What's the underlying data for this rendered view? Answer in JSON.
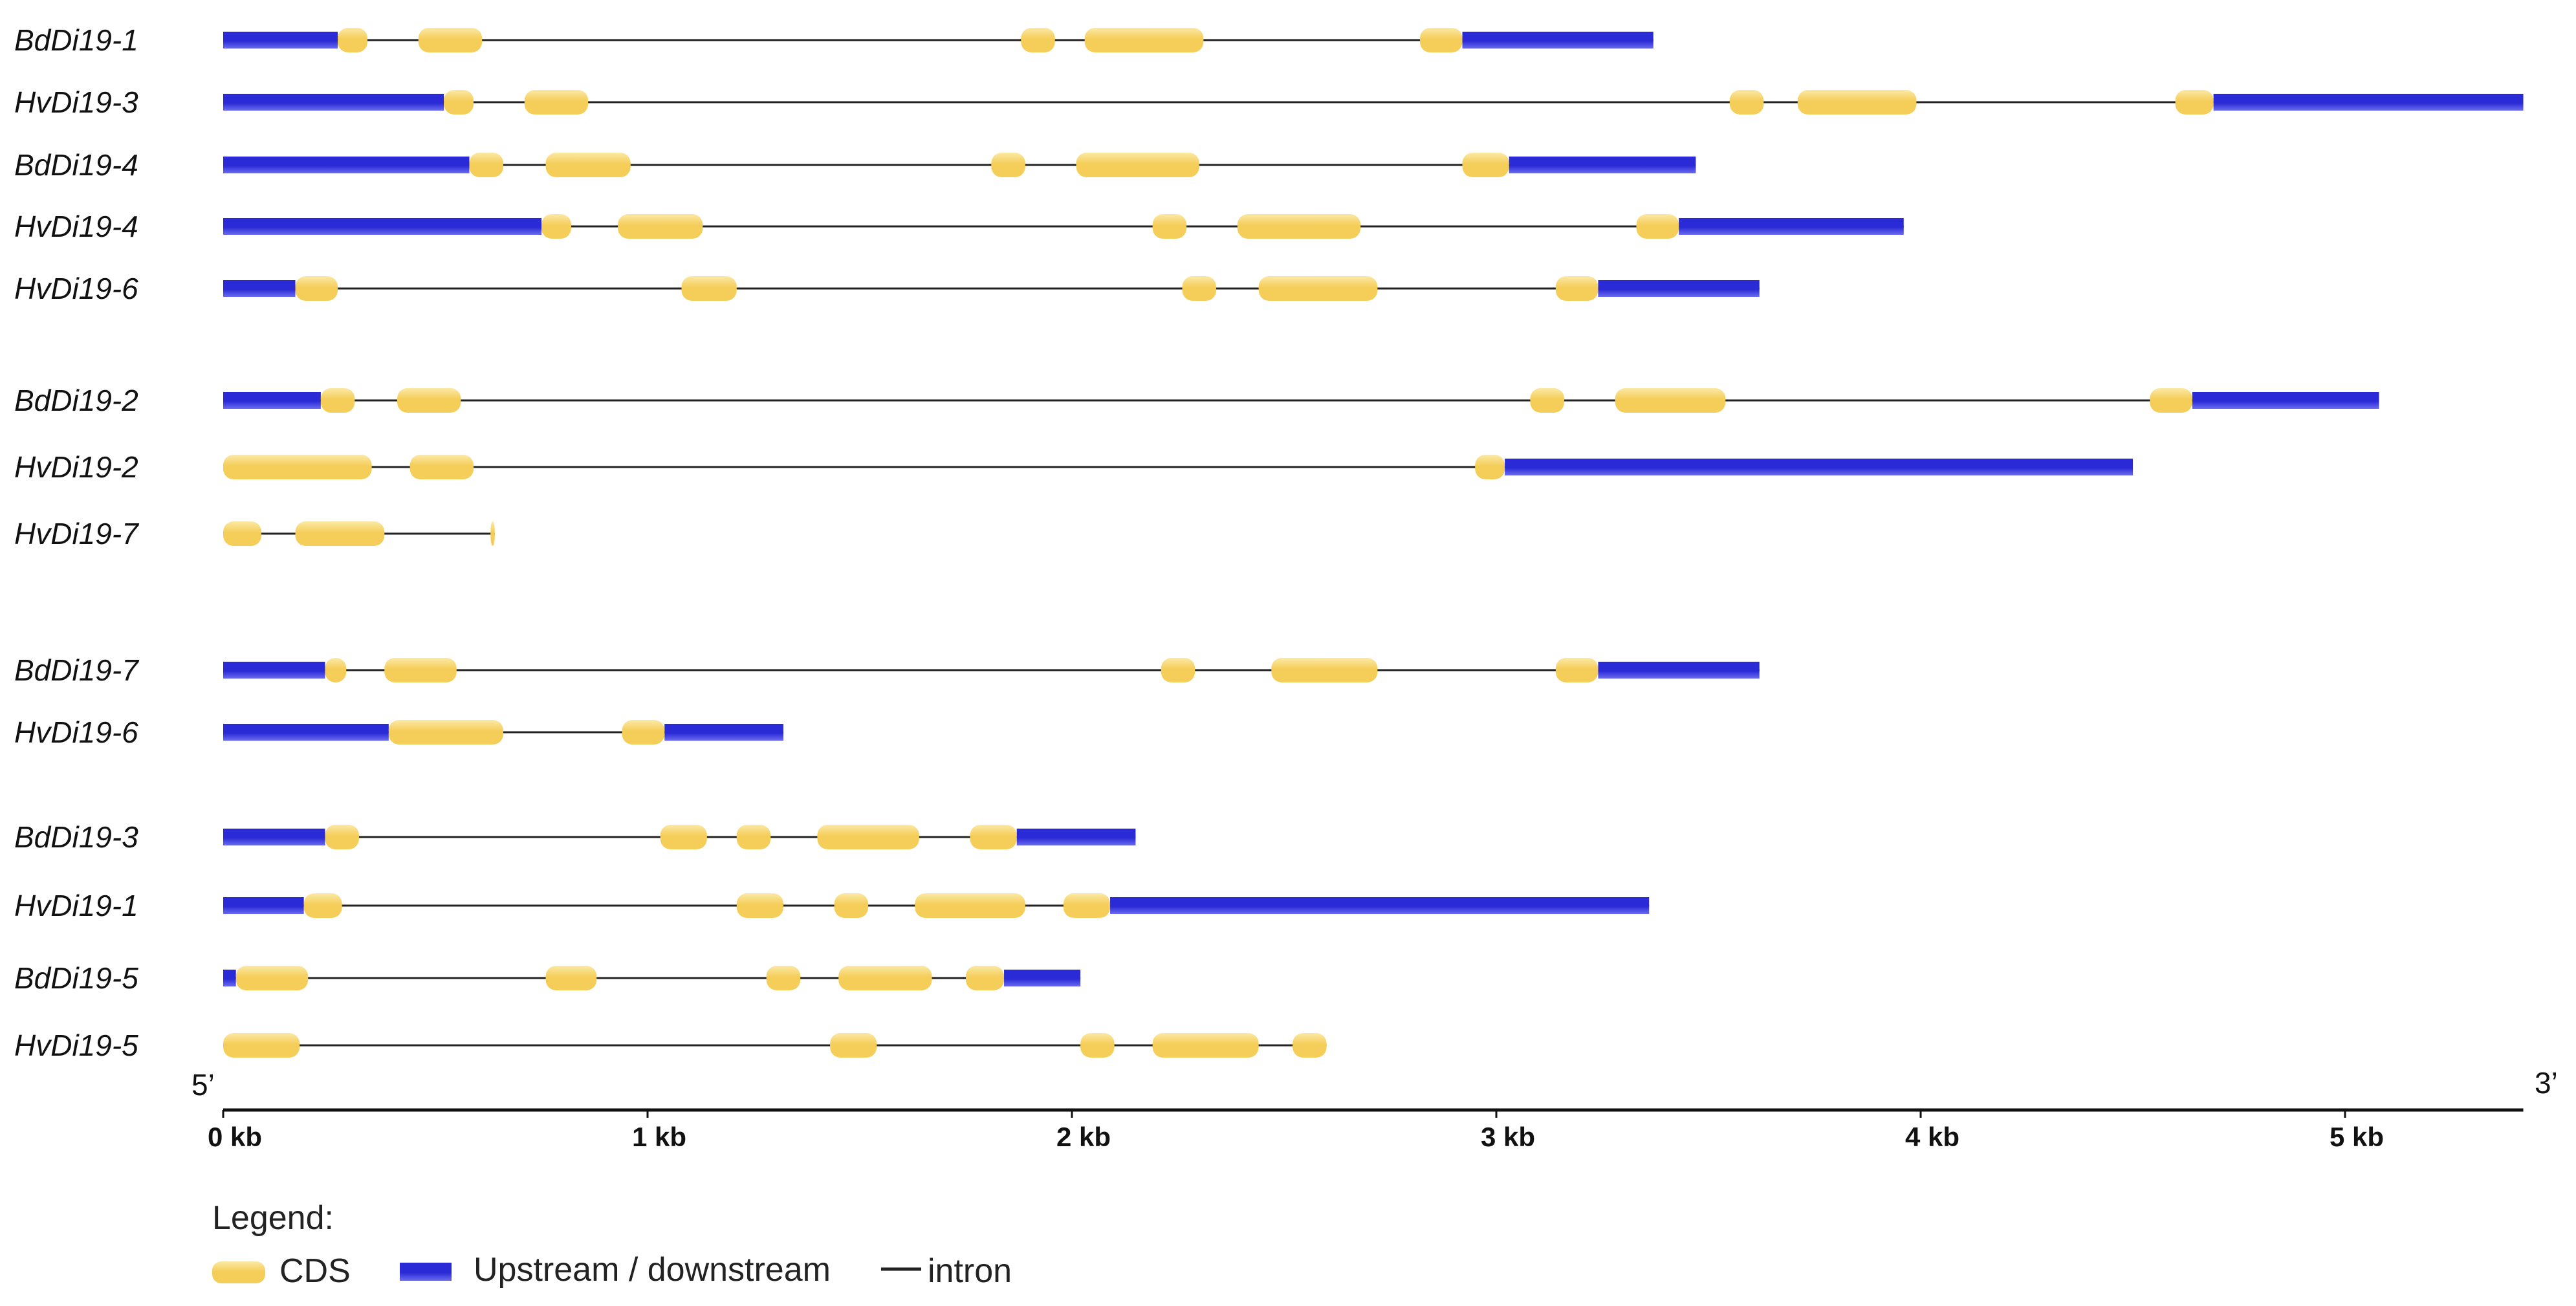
{
  "chart_data": {
    "type": "gene-structure",
    "x_unit": "kb",
    "xlim": [
      0,
      5.42
    ],
    "axis": {
      "start_label": "5’",
      "end_label": "3’",
      "ticks": [
        {
          "value": 0,
          "label": "0 kb"
        },
        {
          "value": 1,
          "label": "1 kb"
        },
        {
          "value": 2,
          "label": "2 kb"
        },
        {
          "value": 3,
          "label": "3 kb"
        },
        {
          "value": 4,
          "label": "4 kb"
        },
        {
          "value": 5,
          "label": "5 kb"
        }
      ]
    },
    "legend": {
      "title": "Legend:",
      "cds_label": "CDS",
      "utr_label": "Upstream / downstream",
      "intron_label": "intron"
    },
    "colors": {
      "cds": "#F5CE5A",
      "cds_highlight": "#FBE9A6",
      "utr": "#2A2AD6",
      "utr_highlight": "#6B6BF0",
      "intron": "#222222",
      "axis": "#111111"
    },
    "genes": [
      {
        "name": "BdDi19-1",
        "group": 1,
        "length": 3.37,
        "utr": [
          [
            0,
            0.27
          ],
          [
            2.92,
            3.37
          ]
        ],
        "cds": [
          [
            0.27,
            0.34
          ],
          [
            0.46,
            0.61
          ],
          [
            1.88,
            1.96
          ],
          [
            2.03,
            2.31
          ],
          [
            2.82,
            2.92
          ]
        ]
      },
      {
        "name": "HvDi19-3",
        "group": 1,
        "length": 5.42,
        "utr": [
          [
            0,
            0.52
          ],
          [
            4.69,
            5.42
          ]
        ],
        "cds": [
          [
            0.52,
            0.59
          ],
          [
            0.71,
            0.86
          ],
          [
            3.55,
            3.63
          ],
          [
            3.71,
            3.99
          ],
          [
            4.6,
            4.69
          ]
        ]
      },
      {
        "name": "BdDi19-4",
        "group": 1,
        "length": 3.47,
        "utr": [
          [
            0,
            0.58
          ],
          [
            3.03,
            3.47
          ]
        ],
        "cds": [
          [
            0.58,
            0.66
          ],
          [
            0.76,
            0.96
          ],
          [
            1.81,
            1.89
          ],
          [
            2.01,
            2.3
          ],
          [
            2.92,
            3.03
          ]
        ]
      },
      {
        "name": "HvDi19-4",
        "group": 1,
        "length": 3.96,
        "utr": [
          [
            0,
            0.75
          ],
          [
            3.43,
            3.96
          ]
        ],
        "cds": [
          [
            0.75,
            0.82
          ],
          [
            0.93,
            1.13
          ],
          [
            2.19,
            2.27
          ],
          [
            2.39,
            2.68
          ],
          [
            3.33,
            3.43
          ]
        ]
      },
      {
        "name": "HvDi19-6",
        "group": 1,
        "length": 3.62,
        "utr": [
          [
            0,
            0.17
          ],
          [
            3.24,
            3.62
          ]
        ],
        "cds": [
          [
            0.17,
            0.27
          ],
          [
            1.08,
            1.21
          ],
          [
            2.26,
            2.34
          ],
          [
            2.44,
            2.72
          ],
          [
            3.14,
            3.24
          ]
        ]
      },
      {
        "name": "BdDi19-2",
        "group": 2,
        "length": 5.08,
        "utr": [
          [
            0,
            0.23
          ],
          [
            4.64,
            5.08
          ]
        ],
        "cds": [
          [
            0.23,
            0.31
          ],
          [
            0.41,
            0.56
          ],
          [
            3.08,
            3.16
          ],
          [
            3.28,
            3.54
          ],
          [
            4.54,
            4.64
          ]
        ]
      },
      {
        "name": "HvDi19-2",
        "group": 2,
        "length": 4.5,
        "utr": [
          [
            3.02,
            4.5
          ]
        ],
        "cds": [
          [
            0,
            0.35
          ],
          [
            0.44,
            0.59
          ],
          [
            2.95,
            3.02
          ]
        ]
      },
      {
        "name": "HvDi19-7",
        "group": 2,
        "length": 0.64,
        "utr": [],
        "cds": [
          [
            0,
            0.09
          ],
          [
            0.17,
            0.38
          ],
          [
            0.63,
            0.64
          ]
        ]
      },
      {
        "name": "BdDi19-7",
        "group": 3,
        "length": 3.62,
        "utr": [
          [
            0,
            0.24
          ],
          [
            3.24,
            3.62
          ]
        ],
        "cds": [
          [
            0.24,
            0.29
          ],
          [
            0.38,
            0.55
          ],
          [
            2.21,
            2.29
          ],
          [
            2.47,
            2.72
          ],
          [
            3.14,
            3.24
          ]
        ]
      },
      {
        "name": "HvDi19-6",
        "group": 3,
        "length": 1.32,
        "utr": [
          [
            0,
            0.39
          ],
          [
            1.04,
            1.32
          ]
        ],
        "cds": [
          [
            0.39,
            0.66
          ],
          [
            0.94,
            1.04
          ]
        ]
      },
      {
        "name": "BdDi19-3",
        "group": 4,
        "length": 2.15,
        "utr": [
          [
            0,
            0.24
          ],
          [
            1.87,
            2.15
          ]
        ],
        "cds": [
          [
            0.24,
            0.32
          ],
          [
            1.03,
            1.14
          ],
          [
            1.21,
            1.29
          ],
          [
            1.4,
            1.64
          ],
          [
            1.76,
            1.87
          ]
        ]
      },
      {
        "name": "HvDi19-1",
        "group": 4,
        "length": 3.36,
        "utr": [
          [
            0,
            0.19
          ],
          [
            2.09,
            3.36
          ]
        ],
        "cds": [
          [
            0.19,
            0.28
          ],
          [
            1.21,
            1.32
          ],
          [
            1.44,
            1.52
          ],
          [
            1.63,
            1.89
          ],
          [
            1.98,
            2.09
          ]
        ]
      },
      {
        "name": "BdDi19-5",
        "group": 4,
        "length": 2.02,
        "utr": [
          [
            0,
            0.03
          ],
          [
            1.84,
            2.02
          ]
        ],
        "cds": [
          [
            0.03,
            0.2
          ],
          [
            0.76,
            0.88
          ],
          [
            1.28,
            1.36
          ],
          [
            1.45,
            1.67
          ],
          [
            1.75,
            1.84
          ]
        ]
      },
      {
        "name": "HvDi19-5",
        "group": 4,
        "length": 2.6,
        "utr": [],
        "cds": [
          [
            0,
            0.18
          ],
          [
            1.43,
            1.54
          ],
          [
            2.02,
            2.1
          ],
          [
            2.19,
            2.44
          ],
          [
            2.52,
            2.6
          ]
        ]
      }
    ]
  }
}
